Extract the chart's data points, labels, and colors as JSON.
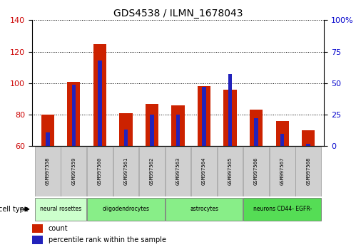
{
  "title": "GDS4538 / ILMN_1678043",
  "samples": [
    "GSM997558",
    "GSM997559",
    "GSM997560",
    "GSM997561",
    "GSM997562",
    "GSM997563",
    "GSM997564",
    "GSM997565",
    "GSM997566",
    "GSM997567",
    "GSM997568"
  ],
  "count_values": [
    80,
    101,
    125,
    81,
    87,
    86,
    98,
    96,
    83,
    76,
    70
  ],
  "percentile_values": [
    11,
    49,
    68,
    13,
    25,
    25,
    47,
    57,
    22,
    10,
    2
  ],
  "ymin": 60,
  "ymax": 140,
  "yticks_left": [
    60,
    80,
    100,
    120,
    140
  ],
  "yticks_right": [
    0,
    25,
    50,
    75,
    100
  ],
  "cell_type_groups": [
    {
      "label": "neural rosettes",
      "start": 0,
      "end": 2,
      "color": "#ccffcc"
    },
    {
      "label": "oligodendrocytes",
      "start": 2,
      "end": 5,
      "color": "#88ee88"
    },
    {
      "label": "astrocytes",
      "start": 5,
      "end": 8,
      "color": "#88ee88"
    },
    {
      "label": "neurons CD44- EGFR-",
      "start": 8,
      "end": 11,
      "color": "#55dd55"
    }
  ],
  "bar_color_red": "#cc2200",
  "bar_color_blue": "#2222bb",
  "bar_width": 0.5,
  "blue_bar_width": 0.15,
  "ylabel_left_color": "#cc0000",
  "ylabel_right_color": "#0000cc",
  "plot_bg": "#ffffff",
  "tick_label_area_color": "#d0d0d0",
  "legend_labels": [
    "count",
    "percentile rank within the sample"
  ]
}
